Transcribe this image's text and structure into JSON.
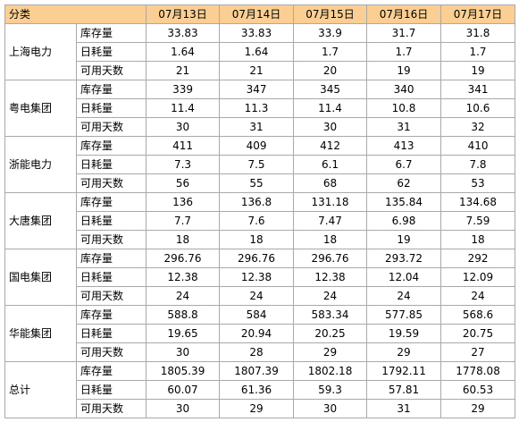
{
  "header": {
    "category": "分类",
    "dates": [
      "07月13日",
      "07月14日",
      "07月15日",
      "07月16日",
      "07月17日"
    ]
  },
  "groups": [
    {
      "name": "上海电力",
      "rows": [
        {
          "metric": "库存量",
          "values": [
            "33.83",
            "33.83",
            "33.9",
            "31.7",
            "31.8"
          ]
        },
        {
          "metric": "日耗量",
          "values": [
            "1.64",
            "1.64",
            "1.7",
            "1.7",
            "1.7"
          ]
        },
        {
          "metric": "可用天数",
          "values": [
            "21",
            "21",
            "20",
            "19",
            "19"
          ]
        }
      ]
    },
    {
      "name": "粤电集团",
      "rows": [
        {
          "metric": "库存量",
          "values": [
            "339",
            "347",
            "345",
            "340",
            "341"
          ]
        },
        {
          "metric": "日耗量",
          "values": [
            "11.4",
            "11.3",
            "11.4",
            "10.8",
            "10.6"
          ]
        },
        {
          "metric": "可用天数",
          "values": [
            "30",
            "31",
            "30",
            "31",
            "32"
          ]
        }
      ]
    },
    {
      "name": "浙能电力",
      "rows": [
        {
          "metric": "库存量",
          "values": [
            "411",
            "409",
            "412",
            "413",
            "410"
          ]
        },
        {
          "metric": "日耗量",
          "values": [
            "7.3",
            "7.5",
            "6.1",
            "6.7",
            "7.8"
          ]
        },
        {
          "metric": "可用天数",
          "values": [
            "56",
            "55",
            "68",
            "62",
            "53"
          ]
        }
      ]
    },
    {
      "name": "大唐集团",
      "rows": [
        {
          "metric": "库存量",
          "values": [
            "136",
            "136.8",
            "131.18",
            "135.84",
            "134.68"
          ]
        },
        {
          "metric": "日耗量",
          "values": [
            "7.7",
            "7.6",
            "7.47",
            "6.98",
            "7.59"
          ]
        },
        {
          "metric": "可用天数",
          "values": [
            "18",
            "18",
            "18",
            "19",
            "18"
          ]
        }
      ]
    },
    {
      "name": "国电集团",
      "rows": [
        {
          "metric": "库存量",
          "values": [
            "296.76",
            "296.76",
            "296.76",
            "293.72",
            "292"
          ]
        },
        {
          "metric": "日耗量",
          "values": [
            "12.38",
            "12.38",
            "12.38",
            "12.04",
            "12.09"
          ]
        },
        {
          "metric": "可用天数",
          "values": [
            "24",
            "24",
            "24",
            "24",
            "24"
          ]
        }
      ]
    },
    {
      "name": "华能集团",
      "rows": [
        {
          "metric": "库存量",
          "values": [
            "588.8",
            "584",
            "583.34",
            "577.85",
            "568.6"
          ]
        },
        {
          "metric": "日耗量",
          "values": [
            "19.65",
            "20.94",
            "20.25",
            "19.59",
            "20.75"
          ]
        },
        {
          "metric": "可用天数",
          "values": [
            "30",
            "28",
            "29",
            "29",
            "27"
          ]
        }
      ]
    },
    {
      "name": "总计",
      "rows": [
        {
          "metric": "库存量",
          "values": [
            "1805.39",
            "1807.39",
            "1802.18",
            "1792.11",
            "1778.08"
          ]
        },
        {
          "metric": "日耗量",
          "values": [
            "60.07",
            "61.36",
            "59.3",
            "57.81",
            "60.53"
          ]
        },
        {
          "metric": "可用天数",
          "values": [
            "30",
            "29",
            "30",
            "31",
            "29"
          ]
        }
      ]
    }
  ],
  "colors": {
    "header_background": "#fbcf93",
    "border": "#a9a9a9"
  }
}
